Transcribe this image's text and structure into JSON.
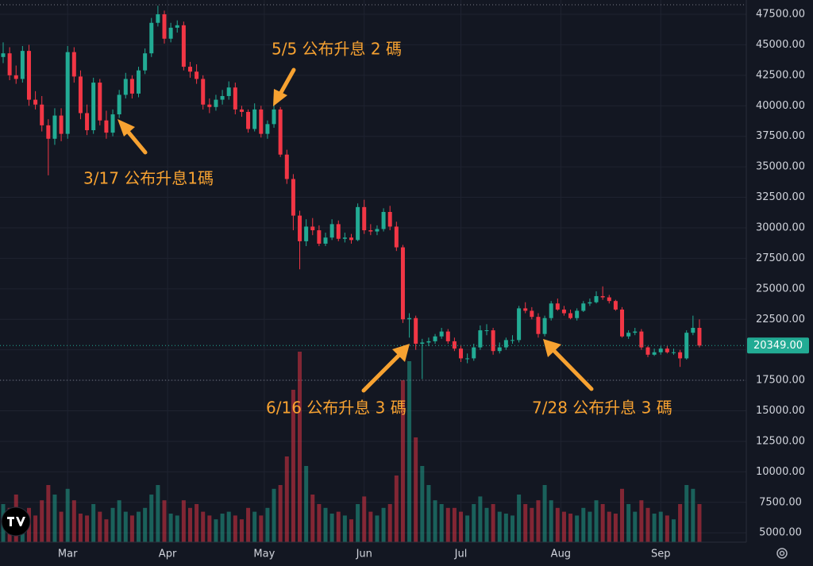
{
  "chart_data": {
    "type": "candlestick",
    "open": [
      44000,
      44300,
      42500,
      42200,
      44500,
      40500,
      40100,
      38400,
      37300,
      39200,
      37700,
      44400,
      42400,
      39400,
      38000,
      41900,
      38800,
      37800,
      39300,
      40900,
      42200,
      41000,
      42900,
      44300,
      46800,
      47500,
      45500,
      46400,
      46600,
      43200,
      42800,
      42200,
      40100,
      39900,
      40500,
      40800,
      41500,
      39700,
      39500,
      38100,
      39700,
      37700,
      38500,
      39700,
      36000,
      34000,
      31000,
      28900,
      30100,
      29800,
      28700,
      29200,
      30300,
      29100,
      29200,
      29000,
      31700,
      29800,
      29700,
      29900,
      31300,
      30100,
      28400,
      22500,
      22600,
      20500,
      20600,
      20700,
      21100,
      21500,
      20700,
      20100,
      19300,
      19300,
      20200,
      21600,
      21600,
      19900,
      20200,
      20800,
      20800,
      23400,
      23200,
      22700,
      21300,
      22600,
      23800,
      23300,
      23000,
      22600,
      23200,
      23800,
      23900,
      24400,
      24300,
      24000,
      23300,
      21100,
      21400,
      21500,
      20200,
      19600,
      19800,
      20100,
      19800,
      19800,
      19300,
      21400,
      21800
    ],
    "high": [
      45200,
      44800,
      43300,
      44900,
      45000,
      41200,
      40800,
      38900,
      39800,
      39800,
      44900,
      44800,
      42900,
      40100,
      42300,
      42200,
      39600,
      39700,
      41300,
      42700,
      42500,
      43200,
      44700,
      47200,
      48200,
      47800,
      46800,
      47000,
      46900,
      43600,
      43400,
      42500,
      40600,
      40900,
      41300,
      42000,
      41900,
      40000,
      39700,
      40200,
      40000,
      38800,
      40100,
      39900,
      36400,
      34400,
      31400,
      30700,
      30800,
      30200,
      29600,
      30700,
      30600,
      29600,
      29500,
      32000,
      32300,
      30300,
      30200,
      31600,
      31800,
      30500,
      28600,
      23000,
      22800,
      20900,
      21000,
      21300,
      21800,
      21700,
      21000,
      20400,
      19700,
      20500,
      22000,
      22100,
      21800,
      20600,
      21000,
      21200,
      23600,
      23900,
      23500,
      23000,
      22800,
      24000,
      24200,
      23600,
      23300,
      23400,
      24000,
      24200,
      24800,
      25200,
      24500,
      24100,
      23500,
      21600,
      21800,
      21700,
      20300,
      20100,
      20300,
      20300,
      20100,
      20000,
      21600,
      22800,
      22500
    ],
    "low": [
      43500,
      42100,
      41800,
      41900,
      40000,
      39700,
      37900,
      34300,
      36800,
      37100,
      37300,
      41900,
      38900,
      37600,
      37700,
      38400,
      37300,
      37500,
      39000,
      40600,
      40600,
      40700,
      42600,
      44000,
      46500,
      45100,
      45200,
      46000,
      42900,
      42300,
      41800,
      39700,
      39400,
      39600,
      40100,
      40500,
      39300,
      39100,
      37800,
      37900,
      37400,
      37300,
      38200,
      35800,
      33600,
      29800,
      26600,
      28500,
      29400,
      28500,
      28500,
      29000,
      28900,
      28800,
      28700,
      28900,
      29500,
      29400,
      29400,
      29700,
      29800,
      28100,
      22200,
      21000,
      20000,
      17600,
      20300,
      20500,
      20900,
      20500,
      19900,
      19000,
      18900,
      19100,
      20000,
      21200,
      19600,
      19700,
      20000,
      20500,
      20600,
      23000,
      22500,
      21000,
      21100,
      22400,
      23200,
      22800,
      22500,
      22400,
      23100,
      23600,
      23800,
      24100,
      23800,
      23200,
      21000,
      20900,
      21200,
      20000,
      19400,
      19500,
      19600,
      19700,
      19600,
      18600,
      19200,
      21200,
      20200
    ],
    "close": [
      44300,
      42500,
      42200,
      44500,
      40500,
      40100,
      38400,
      37300,
      39200,
      37700,
      44400,
      42400,
      39400,
      38000,
      41900,
      38800,
      37800,
      39300,
      40900,
      42200,
      41000,
      42900,
      44300,
      46800,
      47500,
      45500,
      46400,
      46600,
      43200,
      42800,
      42200,
      40100,
      39900,
      40500,
      40800,
      41500,
      39700,
      39500,
      38100,
      39700,
      37700,
      38500,
      39700,
      36000,
      34000,
      31000,
      28900,
      30100,
      29800,
      28700,
      29200,
      30300,
      29100,
      29200,
      29000,
      31700,
      29800,
      29700,
      29900,
      31300,
      30100,
      28400,
      22500,
      22600,
      20500,
      20600,
      20700,
      21100,
      21500,
      20700,
      20100,
      19300,
      19300,
      20200,
      21600,
      21600,
      19900,
      20200,
      20800,
      20800,
      23400,
      23200,
      22700,
      21300,
      22600,
      23800,
      23300,
      23000,
      22600,
      23200,
      23800,
      23900,
      24400,
      24300,
      24000,
      23300,
      21100,
      21400,
      21500,
      20200,
      19600,
      19800,
      20100,
      19800,
      19800,
      19300,
      21400,
      21800,
      20349
    ],
    "volume": [
      20,
      18,
      25,
      15,
      18,
      14,
      22,
      30,
      25,
      16,
      28,
      22,
      15,
      14,
      20,
      16,
      12,
      18,
      22,
      16,
      14,
      16,
      18,
      25,
      30,
      22,
      15,
      14,
      22,
      18,
      20,
      16,
      14,
      12,
      15,
      16,
      14,
      12,
      18,
      16,
      14,
      18,
      28,
      30,
      45,
      80,
      100,
      40,
      25,
      20,
      18,
      15,
      16,
      14,
      12,
      20,
      24,
      16,
      14,
      18,
      20,
      35,
      85,
      95,
      55,
      40,
      30,
      22,
      20,
      18,
      18,
      16,
      14,
      20,
      24,
      18,
      20,
      16,
      15,
      14,
      25,
      20,
      18,
      22,
      30,
      22,
      18,
      16,
      15,
      14,
      18,
      16,
      22,
      20,
      16,
      15,
      28,
      20,
      16,
      22,
      18,
      15,
      16,
      14,
      12,
      20,
      30,
      28,
      20
    ],
    "volume_lim": [
      0,
      100
    ],
    "up_color": "#22ab94",
    "down_color": "#f23645",
    "ylim": [
      4234,
      48671
    ],
    "yticks": [
      {
        "value": 5000,
        "label": "5000.00"
      },
      {
        "value": 7500,
        "label": "7500.00"
      },
      {
        "value": 10000,
        "label": "10000.00"
      },
      {
        "value": 12500,
        "label": "12500.00"
      },
      {
        "value": 15000,
        "label": "15000.00"
      },
      {
        "value": 17500,
        "label": "17500.00"
      },
      {
        "value": 20000,
        "label": "20000.00"
      },
      {
        "value": 22500,
        "label": "22500.00"
      },
      {
        "value": 25000,
        "label": "25000.00"
      },
      {
        "value": 27500,
        "label": "27500.00"
      },
      {
        "value": 30000,
        "label": "30000.00"
      },
      {
        "value": 32500,
        "label": "32500.00"
      },
      {
        "value": 35000,
        "label": "35000.00"
      },
      {
        "value": 37500,
        "label": "37500.00"
      },
      {
        "value": 40000,
        "label": "40000.00"
      },
      {
        "value": 42500,
        "label": "42500.00"
      },
      {
        "value": 45000,
        "label": "45000.00"
      },
      {
        "value": 47500,
        "label": "47500.00"
      }
    ],
    "xticks": [
      {
        "value": 10,
        "label": "Mar"
      },
      {
        "value": 25.5,
        "label": "Apr"
      },
      {
        "value": 40.5,
        "label": "May"
      },
      {
        "value": 56,
        "label": "Jun"
      },
      {
        "value": 71,
        "label": "Jul"
      },
      {
        "value": 86.5,
        "label": "Aug"
      },
      {
        "value": 102,
        "label": "Sep"
      }
    ],
    "last_price": {
      "value": 20349,
      "label": "20349.00"
    },
    "grid": true,
    "annotations": [
      "3/17 公布升息1碼",
      "5/5 公布升息 2 碼",
      "6/16 公布升息 3 碼",
      "7/28 公布升息 3 碼"
    ]
  }
}
